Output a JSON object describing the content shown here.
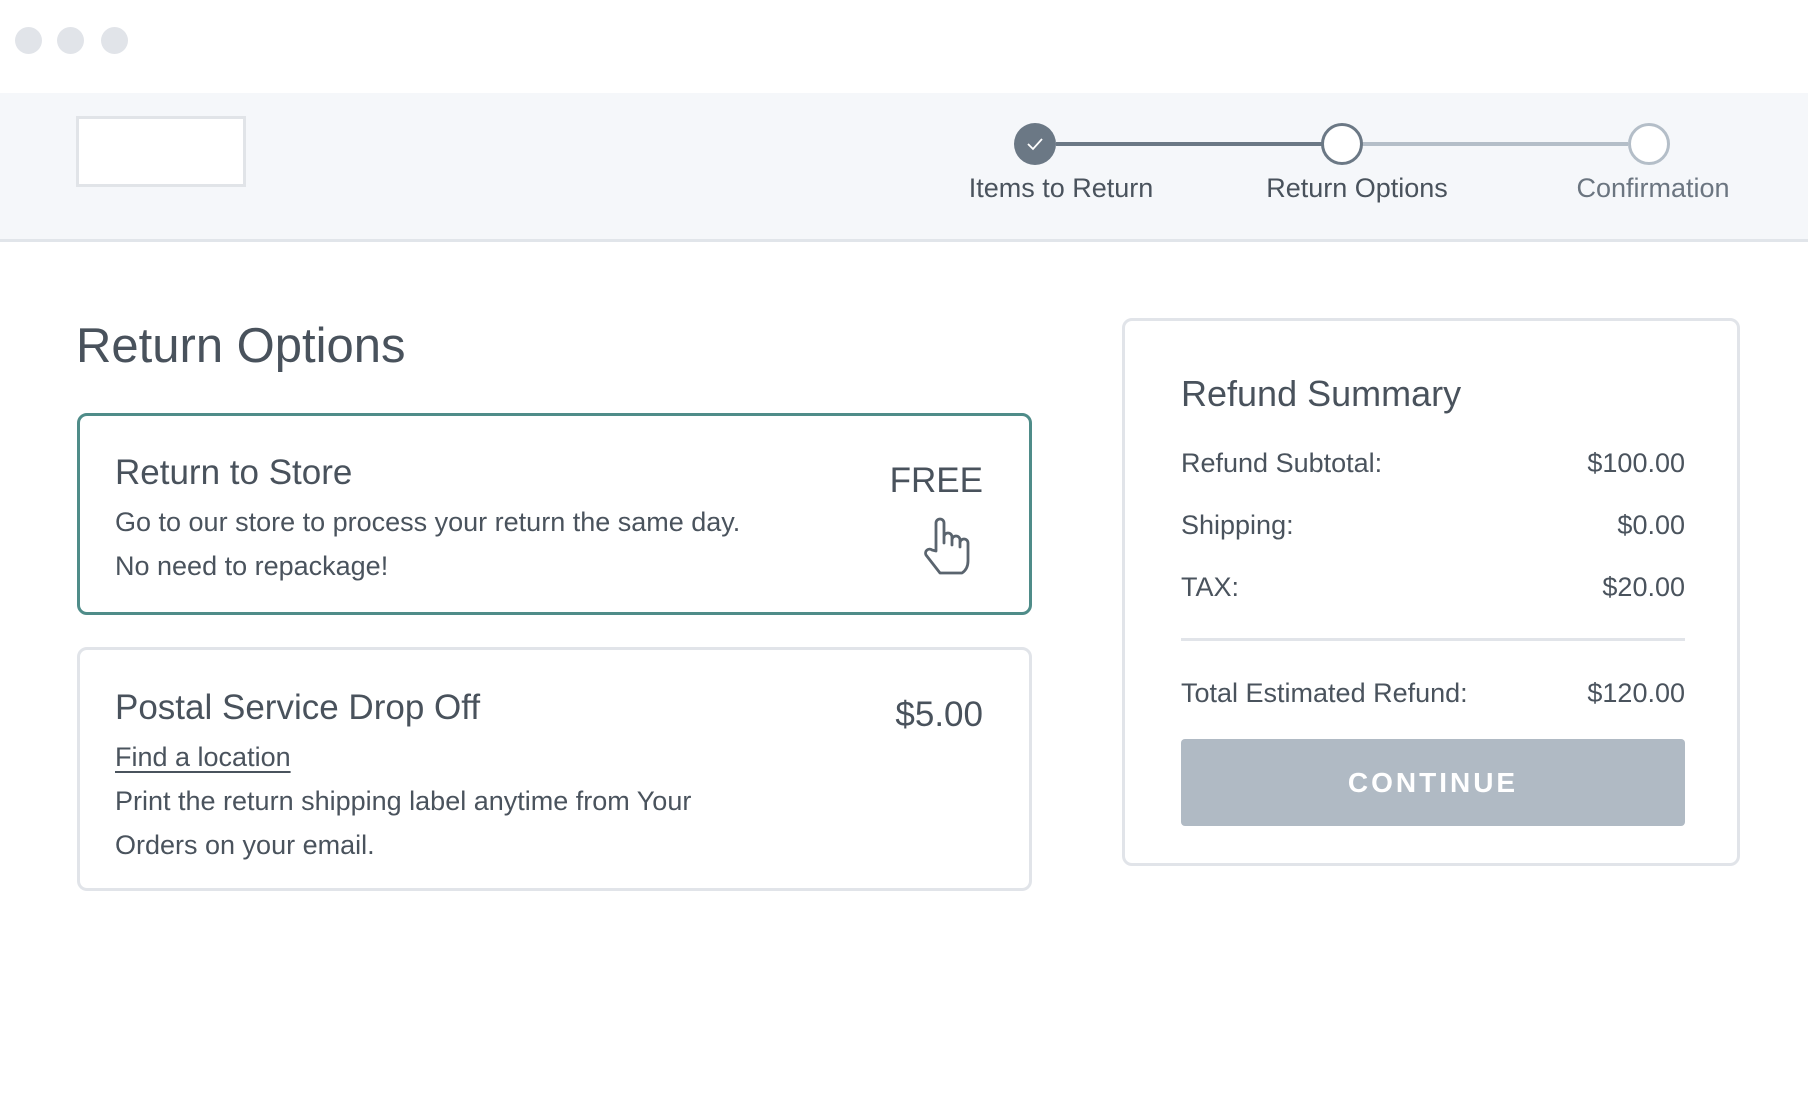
{
  "window": {
    "controls": [
      "close",
      "minimize",
      "maximize"
    ]
  },
  "stepper": {
    "steps": [
      {
        "label": "Items to Return",
        "state": "completed"
      },
      {
        "label": "Return Options",
        "state": "current"
      },
      {
        "label": "Confirmation",
        "state": "upcoming"
      }
    ]
  },
  "main": {
    "title": "Return Options",
    "options": [
      {
        "title": "Return to Store",
        "price": "FREE",
        "lines": [
          "Go to our store to process your return the same day.",
          "No need to repackage!"
        ],
        "selected": true
      },
      {
        "title": "Postal Service Drop Off",
        "price": "$5.00",
        "link": "Find a location",
        "lines": [
          "Print the return shipping label anytime from Your",
          "Orders on your email."
        ],
        "selected": false
      }
    ]
  },
  "summary": {
    "title": "Refund Summary",
    "rows": [
      {
        "label": "Refund Subtotal:",
        "value": "$100.00"
      },
      {
        "label": "Shipping:",
        "value": "$0.00"
      },
      {
        "label": "TAX:",
        "value": "$20.00"
      }
    ],
    "total": {
      "label": "Total Estimated Refund:",
      "value": "$120.00"
    },
    "continue_label": "CONTINUE"
  },
  "colors": {
    "accent": "#4f8c89",
    "step_done": "#6b7885",
    "button_disabled": "#b0bac4"
  }
}
